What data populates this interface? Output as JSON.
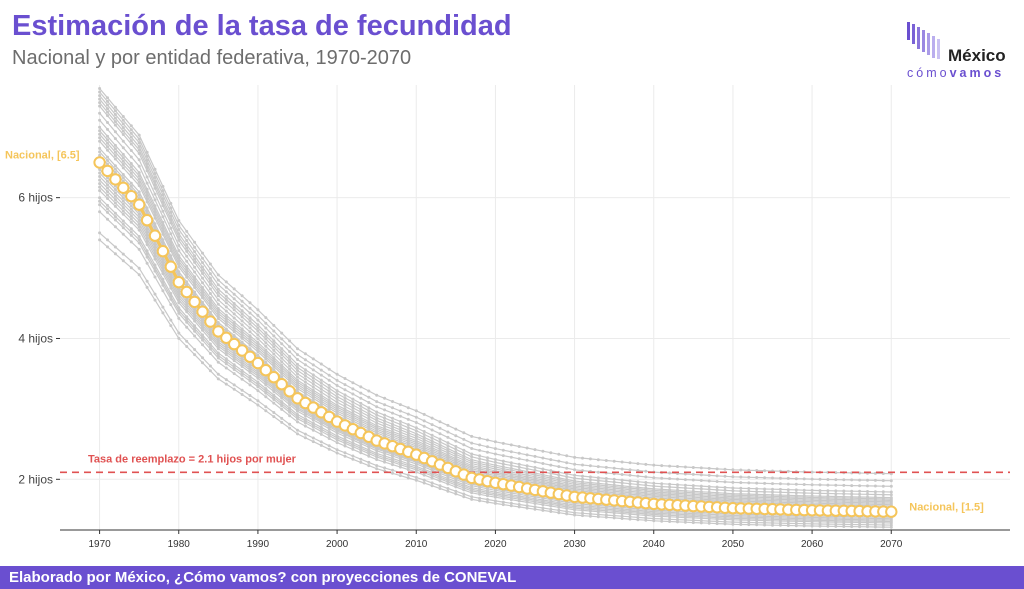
{
  "header": {
    "title": "Estimación de la tasa de fecundidad",
    "subtitle": "Nacional y por entidad federativa, 1970-2070"
  },
  "logo": {
    "word": "México",
    "sub_a": "cómo",
    "sub_b": "vamos",
    "color": "#6a4fd0"
  },
  "footer": {
    "text": "Elaborado por México, ¿Cómo vamos? con proyecciones de CONEVAL",
    "color": "#6a4fd0"
  },
  "chart_data": {
    "type": "line",
    "title": "Estimación de la tasa de fecundidad",
    "subtitle": "Nacional y por entidad federativa, 1970-2070",
    "xlim": [
      1965,
      2085
    ],
    "ylim": [
      1.28,
      7.6
    ],
    "x_ticks": [
      1970,
      1980,
      1990,
      2000,
      2010,
      2020,
      2030,
      2040,
      2050,
      2060,
      2070
    ],
    "y_ticks": [
      {
        "value": 2,
        "label": "2 hijos"
      },
      {
        "value": 4,
        "label": "4 hijos"
      },
      {
        "value": 6,
        "label": "6 hijos"
      }
    ],
    "grid": true,
    "colors": {
      "national": "#f5c55a",
      "states": "#c8c8c8",
      "reference": "#e05252",
      "grid": "#ebebeb"
    },
    "reference_line": {
      "value": 2.1,
      "label": "Tasa de reemplazo = 2.1 hijos por mujer"
    },
    "national": {
      "keypoints": [
        [
          1970,
          6.5
        ],
        [
          1975,
          5.9
        ],
        [
          1980,
          4.8
        ],
        [
          1985,
          4.1
        ],
        [
          1990,
          3.65
        ],
        [
          1995,
          3.15
        ],
        [
          2000,
          2.82
        ],
        [
          2005,
          2.55
        ],
        [
          2010,
          2.35
        ],
        [
          2017,
          2.02
        ],
        [
          2020,
          1.95
        ],
        [
          2025,
          1.85
        ],
        [
          2030,
          1.75
        ],
        [
          2040,
          1.65
        ],
        [
          2050,
          1.59
        ],
        [
          2060,
          1.56
        ],
        [
          2070,
          1.54
        ]
      ],
      "start_label": "Nacional, [6.5]",
      "end_label": "Nacional, [1.5]"
    },
    "states": {
      "start": [
        7.55,
        7.5,
        7.45,
        7.4,
        7.35,
        7.3,
        7.2,
        7.1,
        7.0,
        6.95,
        6.9,
        6.85,
        6.8,
        6.7,
        6.65,
        6.6,
        6.55,
        6.5,
        6.45,
        6.4,
        6.35,
        6.3,
        6.25,
        6.2,
        6.15,
        6.1,
        6.0,
        5.95,
        5.9,
        5.8,
        5.5,
        5.4
      ],
      "end": [
        2.08,
        1.98,
        1.9,
        1.82,
        1.78,
        1.74,
        1.72,
        1.7,
        1.68,
        1.66,
        1.64,
        1.62,
        1.6,
        1.59,
        1.58,
        1.57,
        1.56,
        1.55,
        1.54,
        1.53,
        1.52,
        1.51,
        1.5,
        1.49,
        1.48,
        1.46,
        1.44,
        1.42,
        1.4,
        1.38,
        1.35,
        1.32
      ]
    }
  }
}
